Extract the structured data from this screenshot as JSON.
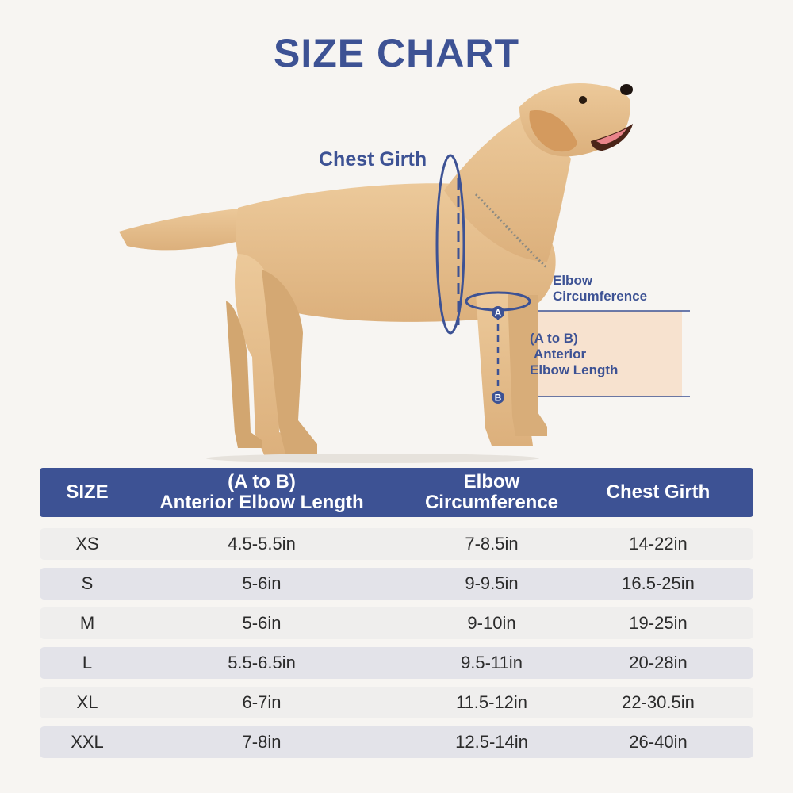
{
  "title": "SIZE CHART",
  "labels": {
    "chest_girth": "Chest Girth",
    "elbow_line1": "Elbow",
    "elbow_line2": "Circumference",
    "ab_line1": "(A to B)",
    "ab_line2": "Anterior",
    "ab_line3": "Elbow Length",
    "point_a": "A",
    "point_b": "B"
  },
  "colors": {
    "brand": "#3d5294",
    "highlight": "#f7e2cf",
    "dog_fur": "#e8c394"
  },
  "table": {
    "headers": [
      "SIZE",
      "(A to B)\nAnterior Elbow Length",
      "Elbow\nCircumference",
      "Chest Girth"
    ],
    "rows": [
      [
        "XS",
        "4.5-5.5in",
        "7-8.5in",
        "14-22in"
      ],
      [
        "S",
        "5-6in",
        "9-9.5in",
        "16.5-25in"
      ],
      [
        "M",
        "5-6in",
        "9-10in",
        "19-25in"
      ],
      [
        "L",
        "5.5-6.5in",
        "9.5-11in",
        "20-28in"
      ],
      [
        "XL",
        "6-7in",
        "11.5-12in",
        "22-30.5in"
      ],
      [
        "XXL",
        "7-8in",
        "12.5-14in",
        "26-40in"
      ]
    ]
  }
}
